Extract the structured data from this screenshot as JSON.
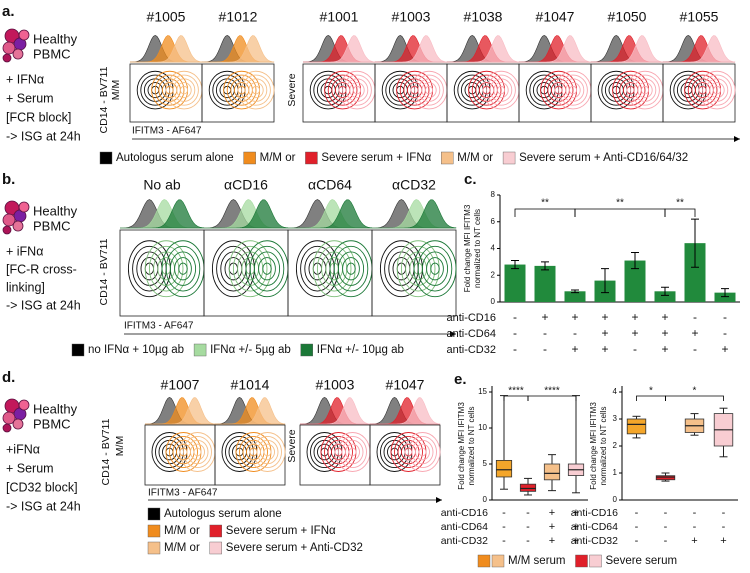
{
  "panels": {
    "a": {
      "letter": "a.",
      "cells": [
        "Healthy",
        "PBMC"
      ],
      "treatment": [
        "+ IFNα",
        "+ Serum",
        "[FCR block]",
        "-> ISG at 24h"
      ],
      "y_axis": "CD14 - BV711",
      "groups": [
        "M/M",
        "Severe"
      ],
      "x_axis": "IFITM3 - AF647",
      "samples": [
        {
          "label": "#1005",
          "color": "#000000"
        },
        {
          "label": "#1012",
          "color": "#000000"
        },
        {
          "label": "#1001",
          "color": "#000000"
        },
        {
          "label": "#1003",
          "color": "#000000"
        },
        {
          "label": "#1038",
          "color": "#000000"
        },
        {
          "label": "#1047",
          "color": "#000000"
        },
        {
          "label": "#1050",
          "color": "#e8443a"
        },
        {
          "label": "#1055",
          "color": "#000000"
        }
      ],
      "legend": [
        {
          "color": "#000000",
          "label": "Autologus serum alone"
        },
        {
          "color": "#f08c1e",
          "label": "M/M or"
        },
        {
          "color": "#e0202a",
          "label": "Severe serum + IFNα"
        },
        {
          "color": "#f5c08a",
          "label": "M/M or"
        },
        {
          "color": "#f8cdd2",
          "label": "Severe serum + Anti-CD16/64/32"
        }
      ]
    },
    "b": {
      "letter": "b.",
      "cells": [
        "Healthy",
        "PBMC"
      ],
      "treatment": [
        "+ iFNα",
        "[FC-R cross-",
        "linking]",
        "-> ISG at 24h"
      ],
      "y_axis": "CD14 - BV711",
      "x_axis": "IFITM3 - AF647",
      "conditions": [
        "No ab",
        "αCD16",
        "αCD64",
        "αCD32"
      ],
      "legend": [
        {
          "color": "#000000",
          "label": "no IFNα + 10µg ab"
        },
        {
          "color": "#a6dba0",
          "label": "IFNα +/- 5µg ab"
        },
        {
          "color": "#1b7837",
          "label": "IFNα +/- 10µg ab"
        }
      ]
    },
    "c": {
      "letter": "c.",
      "type": "bar",
      "y_label": [
        "Fold change MFI IFITM3",
        "normalized to NT cells"
      ],
      "color": "#218a3c",
      "values": [
        2.8,
        2.7,
        0.8,
        1.6,
        3.1,
        0.8,
        4.4,
        0.7
      ],
      "errors": [
        0.3,
        0.3,
        0.1,
        0.9,
        0.6,
        0.3,
        1.8,
        0.3
      ],
      "ylim": [
        0,
        8
      ],
      "yticks": [
        0,
        2,
        4,
        6,
        8
      ],
      "significance": [
        "**",
        "**",
        "**"
      ],
      "rows": [
        {
          "label": "anti-CD16",
          "signs": [
            "-",
            "+",
            "+",
            "+",
            "+",
            "+",
            "-",
            "-"
          ]
        },
        {
          "label": "anti-CD64",
          "signs": [
            "-",
            "-",
            "-",
            "+",
            "+",
            "+",
            "+",
            "-"
          ]
        },
        {
          "label": "anti-CD32",
          "signs": [
            "-",
            "-",
            "+",
            "+",
            "-",
            "+",
            "-",
            "+"
          ]
        }
      ]
    },
    "d": {
      "letter": "d.",
      "cells": [
        "Healthy",
        "PBMC"
      ],
      "treatment": [
        "+iFNα",
        "+ Serum",
        "[CD32 block]",
        "-> ISG at 24h"
      ],
      "y_axis": "CD14 - BV711",
      "groups": [
        "M/M",
        "Severe"
      ],
      "x_axis": "IFITM3 - AF647",
      "samples": [
        "#1007",
        "#1014",
        "#1003",
        "#1047"
      ],
      "legend": [
        [
          {
            "color": "#000000",
            "label": "Autologus serum alone"
          }
        ],
        [
          {
            "color": "#f08c1e",
            "label": "M/M or"
          },
          {
            "color": "#e0202a",
            "label": "Severe serum + IFNα"
          }
        ],
        [
          {
            "color": "#f5c08a",
            "label": "M/M or"
          },
          {
            "color": "#f8cdd2",
            "label": "Severe serum + Anti-CD32"
          }
        ]
      ]
    },
    "e": {
      "letter": "e.",
      "charts": [
        {
          "type": "box",
          "y_label": [
            "Fold change MFI IFITM3",
            "normalized to NT cells"
          ],
          "ylim": [
            0,
            15
          ],
          "yticks": [
            0,
            5,
            10,
            15
          ],
          "boxes": [
            {
              "color": "#f4a62a",
              "low": 1.5,
              "q1": 3.2,
              "median": 4.2,
              "q3": 5.5,
              "high": 14.5
            },
            {
              "color": "#e0202a",
              "low": 0.7,
              "q1": 1.2,
              "median": 1.6,
              "q3": 2.2,
              "high": 3.0
            },
            {
              "color": "#f5c08a",
              "low": 1.3,
              "q1": 2.8,
              "median": 3.7,
              "q3": 5.0,
              "high": 6.3
            },
            {
              "color": "#f8cdd2",
              "low": 1.0,
              "q1": 3.4,
              "median": 4.2,
              "q3": 5.0,
              "high": 14.5
            }
          ],
          "significance": [
            "****",
            "****"
          ],
          "rows": [
            {
              "label": "anti-CD16",
              "signs": [
                "-",
                "-",
                "+",
                "+"
              ]
            },
            {
              "label": "anti-CD64",
              "signs": [
                "-",
                "-",
                "+",
                "+"
              ]
            },
            {
              "label": "anti-CD32",
              "signs": [
                "-",
                "-",
                "+",
                "+"
              ]
            }
          ]
        },
        {
          "type": "box",
          "y_label": [
            "Fold change MFI IFITM3",
            "normalized to NT cells"
          ],
          "ylim": [
            0,
            4
          ],
          "yticks": [
            0,
            1,
            2,
            3,
            4
          ],
          "boxes": [
            {
              "color": "#f4a62a",
              "low": 2.3,
              "q1": 2.45,
              "median": 2.8,
              "q3": 3.0,
              "high": 3.1
            },
            {
              "color": "#e0202a",
              "low": 0.7,
              "q1": 0.75,
              "median": 0.85,
              "q3": 0.9,
              "high": 1.0
            },
            {
              "color": "#f5c08a",
              "low": 2.4,
              "q1": 2.5,
              "median": 2.75,
              "q3": 3.0,
              "high": 3.2
            },
            {
              "color": "#f8cdd2",
              "low": 1.6,
              "q1": 2.0,
              "median": 2.6,
              "q3": 3.2,
              "high": 3.4
            }
          ],
          "significance": [
            "*",
            "*"
          ],
          "rows": [
            {
              "label": "anti-CD16",
              "signs": [
                "-",
                "-",
                "-",
                "-"
              ]
            },
            {
              "label": "anti-CD64",
              "signs": [
                "-",
                "-",
                "-",
                "-"
              ]
            },
            {
              "label": "anti-CD32",
              "signs": [
                "-",
                "-",
                "+",
                "+"
              ]
            }
          ]
        }
      ],
      "legend": [
        {
          "colors": [
            "#f08c1e",
            "#f5c08a"
          ],
          "label": "M/M serum"
        },
        {
          "colors": [
            "#e0202a",
            "#f8cdd2"
          ],
          "label": "Severe serum"
        }
      ]
    }
  }
}
